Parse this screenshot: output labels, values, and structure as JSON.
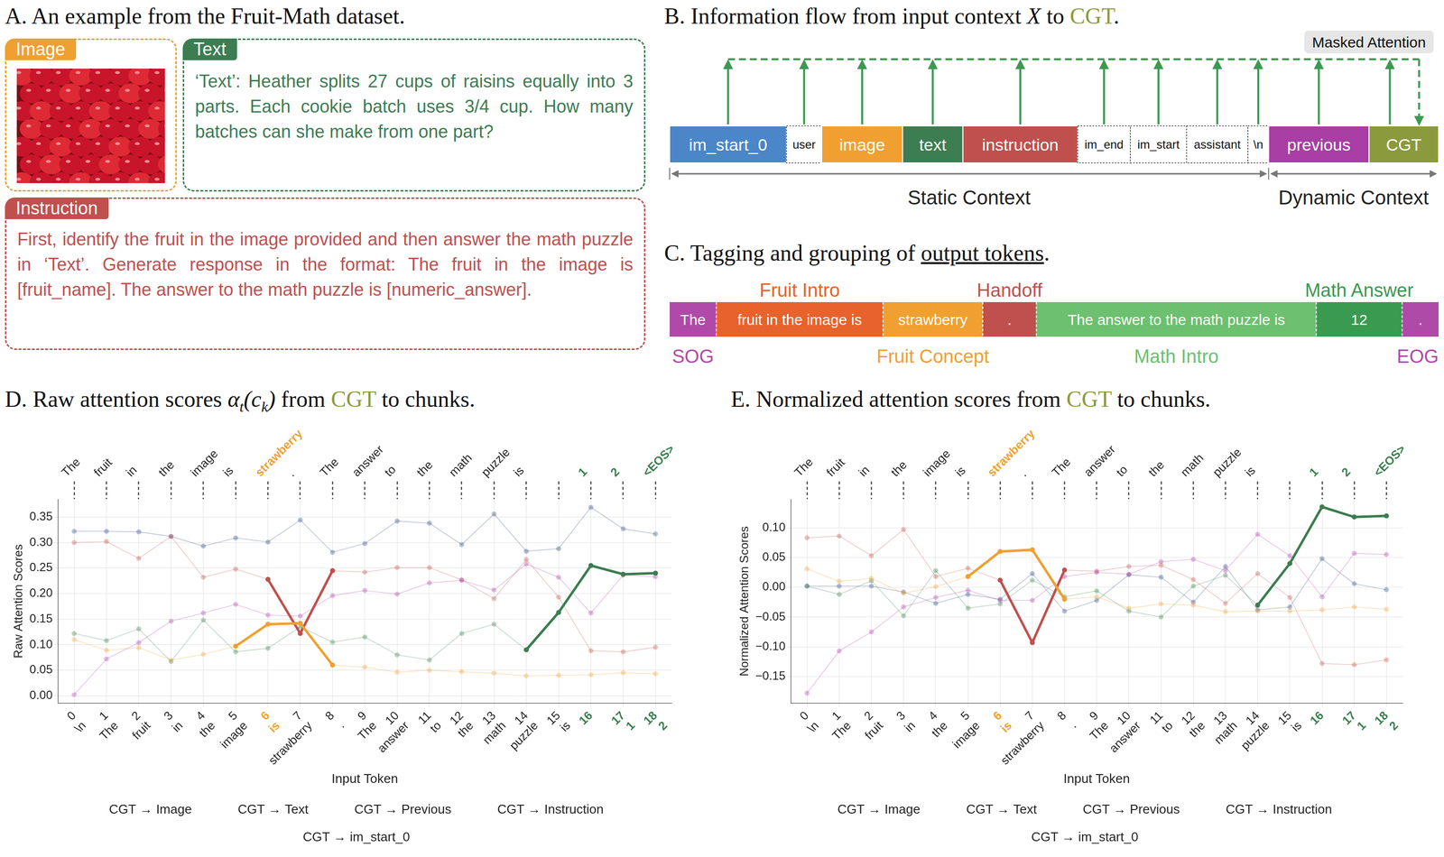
{
  "panel_a": {
    "title": "A. An example from the Fruit-Math dataset.",
    "image": {
      "label": "Image",
      "color": "#f0a030"
    },
    "text": {
      "label": "Text",
      "color": "#3d7d52",
      "content": "‘Text’: Heather splits 27 cups of raisins equally into 3 parts. Each cookie batch uses 3/4 cup. How many batches can she make from one part?"
    },
    "instruction": {
      "label": "Instruction",
      "color": "#c0504d",
      "content": "First, identify the fruit in the image provided and then answer the math puzzle in ‘Text’. Generate response in the format: The fruit in the image is [fruit_name]. The answer to the math puzzle is [numeric_answer]."
    }
  },
  "panel_b": {
    "title": [
      {
        "text": "B. Information flow from input context "
      },
      {
        "text": "X",
        "italic": true
      },
      {
        "text": " to "
      },
      {
        "text": "CGT",
        "color": "#8b9a3c"
      },
      {
        "text": "."
      }
    ],
    "tokens": [
      {
        "label": "im_start_0",
        "color": "#4a86c8"
      },
      {
        "label": "user",
        "color": "#ffffff"
      },
      {
        "label": "image",
        "color": "#f0a030"
      },
      {
        "label": "text",
        "color": "#3d7d52"
      },
      {
        "label": "instruction",
        "color": "#c0504d"
      },
      {
        "label": "im_end",
        "color": "#ffffff"
      },
      {
        "label": "im_start",
        "color": "#ffffff"
      },
      {
        "label": "assistant",
        "color": "#ffffff"
      },
      {
        "label": "\\n",
        "color": "#ffffff"
      },
      {
        "label": "previous",
        "color": "#a93ea5"
      },
      {
        "label": "CGT",
        "color": "#8b9a3c"
      }
    ],
    "attention_label": "Masked Attention",
    "contexts": [
      {
        "label": "Static Context",
        "first": 0,
        "last": 8
      },
      {
        "label": "Dynamic Context",
        "first": 9,
        "last": 10
      }
    ]
  },
  "panel_c": {
    "title": [
      {
        "text": "C. Tagging and grouping of "
      },
      {
        "text": "output tokens",
        "underline": true
      },
      {
        "text": "."
      }
    ],
    "segments": [
      {
        "text": "The",
        "tag": "SOG",
        "tag_side": "below",
        "color": "#b04aa8"
      },
      {
        "text": "fruit in the image is",
        "tag": "Fruit Intro",
        "tag_side": "above",
        "color": "#e8622c"
      },
      {
        "text": "strawberry",
        "tag": "Fruit Concept",
        "tag_side": "below",
        "color": "#f0a030"
      },
      {
        "text": ".",
        "tag": "Handoff",
        "tag_side": "above",
        "color": "#c0504d"
      },
      {
        "text": "The answer to the math puzzle is",
        "tag": "Math Intro",
        "tag_side": "below",
        "color": "#6cc070"
      },
      {
        "text": "12",
        "tag": "Math Answer",
        "tag_side": "above",
        "color": "#3a9a50"
      },
      {
        "text": ".",
        "tag": "EOG",
        "tag_side": "below",
        "color": "#b04aa8"
      }
    ]
  },
  "chart_data": [
    {
      "type": "line",
      "title": [
        {
          "text": "D. Raw attention scores "
        },
        {
          "text": "α",
          "italic": true
        },
        {
          "text": "t",
          "italic": true,
          "sub": true
        },
        {
          "text": "(",
          "italic": true
        },
        {
          "text": "c",
          "italic": true
        },
        {
          "text": "k",
          "italic": true,
          "sub": true
        },
        {
          "text": ")",
          "italic": true
        },
        {
          "text": " from "
        },
        {
          "text": "CGT",
          "color": "#8b9a3c"
        },
        {
          "text": " to chunks."
        }
      ],
      "x_label": "Input Token",
      "y_label": "Raw Attention Scores",
      "x": [
        0,
        1,
        2,
        3,
        4,
        5,
        6,
        7,
        8,
        9,
        10,
        11,
        12,
        13,
        14,
        15,
        16,
        17,
        18
      ],
      "input_tokens": [
        "\\n",
        "The",
        "fruit",
        "in",
        "the",
        "image",
        "is",
        "strawberry",
        ".",
        "The",
        "answer",
        "to",
        "the",
        "math",
        "puzzle",
        "is",
        null,
        "1",
        "2"
      ],
      "output_tokens": [
        "The",
        "fruit",
        "in",
        "the",
        "image",
        "is",
        "strawberry",
        ".",
        "The",
        "answer",
        "to",
        "the",
        "math",
        "puzzle",
        "is",
        null,
        "1",
        "2",
        "<EOS>"
      ],
      "input_token_colors": [
        null,
        null,
        null,
        null,
        null,
        null,
        "#f0a030",
        null,
        null,
        null,
        null,
        null,
        null,
        null,
        null,
        null,
        "#3b7d4f",
        "#3b7d4f",
        "#3b7d4f"
      ],
      "output_token_colors": [
        null,
        null,
        null,
        null,
        null,
        null,
        "#f0a030",
        null,
        null,
        null,
        null,
        null,
        null,
        null,
        null,
        null,
        "#3b7d4f",
        "#3b7d4f",
        "#3b7d4f"
      ],
      "xlim": [
        -0.5,
        18.5
      ],
      "xticks": [
        0,
        1,
        2,
        3,
        4,
        5,
        6,
        7,
        8,
        9,
        10,
        11,
        12,
        13,
        14,
        15,
        16,
        17,
        18
      ],
      "ylim": [
        -0.015,
        0.385
      ],
      "yticks": [
        {
          "value": 0,
          "label": "0.00"
        },
        {
          "value": 0.05,
          "label": "0.05"
        },
        {
          "value": 0.1,
          "label": "0.10"
        },
        {
          "value": 0.15,
          "label": "0.15"
        },
        {
          "value": 0.2,
          "label": "0.20"
        },
        {
          "value": 0.25,
          "label": "0.25"
        },
        {
          "value": 0.3,
          "label": "0.30"
        },
        {
          "value": 0.35,
          "label": "0.35"
        }
      ],
      "grid": true,
      "legend": "bottom",
      "marker": "circle",
      "series": [
        {
          "name": "CGT → Image",
          "color": "#f0a030",
          "highlight": [
            5,
            8
          ],
          "values": [
            0.11,
            0.089,
            0.094,
            0.07,
            0.081,
            0.097,
            0.14,
            0.142,
            0.06,
            0.056,
            0.046,
            0.05,
            0.047,
            0.044,
            0.039,
            0.04,
            0.041,
            0.045,
            0.043
          ]
        },
        {
          "name": "CGT → Text",
          "color": "#3b7d4f",
          "highlight": [
            14,
            18
          ],
          "values": [
            0.122,
            0.108,
            0.131,
            0.067,
            0.148,
            0.086,
            0.093,
            0.135,
            0.105,
            0.115,
            0.08,
            0.07,
            0.122,
            0.14,
            0.09,
            0.163,
            0.255,
            0.238,
            0.24
          ]
        },
        {
          "name": "CGT → Previous",
          "color": "#b03fa8",
          "values": [
            0.002,
            0.072,
            0.104,
            0.146,
            0.162,
            0.179,
            0.158,
            0.156,
            0.196,
            0.206,
            0.199,
            0.221,
            0.226,
            0.207,
            0.258,
            0.232,
            0.162,
            0.236,
            0.233
          ]
        },
        {
          "name": "CGT → Instruction",
          "color": "#c0504d",
          "highlight": [
            6,
            8
          ],
          "values": [
            0.3,
            0.302,
            0.269,
            0.312,
            0.232,
            0.248,
            0.228,
            0.122,
            0.245,
            0.242,
            0.251,
            0.251,
            0.227,
            0.19,
            0.267,
            0.193,
            0.088,
            0.086,
            0.095
          ]
        },
        {
          "name": "CGT → im_start_0",
          "color": "#2d4786",
          "values": [
            0.322,
            0.322,
            0.321,
            0.312,
            0.293,
            0.309,
            0.301,
            0.344,
            0.281,
            0.298,
            0.342,
            0.338,
            0.296,
            0.356,
            0.283,
            0.288,
            0.369,
            0.327,
            0.317
          ]
        }
      ]
    },
    {
      "type": "line",
      "title": [
        {
          "text": "E. Normalized attention scores from "
        },
        {
          "text": "CGT",
          "color": "#8b9a3c"
        },
        {
          "text": " to chunks."
        }
      ],
      "x_label": "Input Token",
      "y_label": "Normalized Attention Scores",
      "x": [
        0,
        1,
        2,
        3,
        4,
        5,
        6,
        7,
        8,
        9,
        10,
        11,
        12,
        13,
        14,
        15,
        16,
        17,
        18
      ],
      "input_tokens": [
        "\\n",
        "The",
        "fruit",
        "in",
        "the",
        "image",
        "is",
        "strawberry",
        ".",
        "The",
        "answer",
        "to",
        "the",
        "math",
        "puzzle",
        "is",
        null,
        "1",
        "2"
      ],
      "output_tokens": [
        "The",
        "fruit",
        "in",
        "the",
        "image",
        "is",
        "strawberry",
        ".",
        "The",
        "answer",
        "to",
        "the",
        "math",
        "puzzle",
        "is",
        null,
        "1",
        "2",
        "<EOS>"
      ],
      "input_token_colors": [
        null,
        null,
        null,
        null,
        null,
        null,
        "#f0a030",
        null,
        null,
        null,
        null,
        null,
        null,
        null,
        null,
        null,
        "#3b7d4f",
        "#3b7d4f",
        "#3b7d4f"
      ],
      "output_token_colors": [
        null,
        null,
        null,
        null,
        null,
        null,
        "#f0a030",
        null,
        null,
        null,
        null,
        null,
        null,
        null,
        null,
        null,
        "#3b7d4f",
        "#3b7d4f",
        "#3b7d4f"
      ],
      "xlim": [
        -0.5,
        18.5
      ],
      "xticks": [
        0,
        1,
        2,
        3,
        4,
        5,
        6,
        7,
        8,
        9,
        10,
        11,
        12,
        13,
        14,
        15,
        16,
        17,
        18
      ],
      "ylim": [
        -0.195,
        0.148
      ],
      "yticks": [
        {
          "value": -0.15,
          "label": "−0.15"
        },
        {
          "value": -0.1,
          "label": "−0.10"
        },
        {
          "value": -0.05,
          "label": "−0.05"
        },
        {
          "value": 0,
          "label": "0.00"
        },
        {
          "value": 0.05,
          "label": "0.05"
        },
        {
          "value": 0.1,
          "label": "0.10"
        }
      ],
      "grid": true,
      "legend": "bottom",
      "marker": "circle",
      "series": [
        {
          "name": "CGT → Image",
          "color": "#f0a030",
          "highlight": [
            5,
            8
          ],
          "values": [
            0.031,
            0.01,
            0.015,
            -0.01,
            0.001,
            0.018,
            0.06,
            0.063,
            -0.02,
            -0.016,
            -0.035,
            -0.028,
            -0.03,
            -0.041,
            -0.04,
            -0.04,
            -0.038,
            -0.033,
            -0.037
          ]
        },
        {
          "name": "CGT → Text",
          "color": "#3b7d4f",
          "highlight": [
            14,
            18
          ],
          "values": [
            0.002,
            -0.012,
            0.011,
            -0.048,
            0.028,
            -0.035,
            -0.028,
            0.012,
            -0.016,
            -0.006,
            -0.04,
            -0.05,
            0.002,
            0.02,
            -0.03,
            0.04,
            0.135,
            0.118,
            0.12
          ]
        },
        {
          "name": "CGT → Previous",
          "color": "#b03fa8",
          "values": [
            -0.178,
            -0.107,
            -0.075,
            -0.033,
            -0.017,
            -0.005,
            -0.022,
            -0.022,
            0.018,
            0.025,
            0.022,
            0.043,
            0.047,
            0.028,
            0.089,
            0.053,
            -0.016,
            0.057,
            0.055
          ]
        },
        {
          "name": "CGT → Instruction",
          "color": "#c0504d",
          "highlight": [
            6,
            8
          ],
          "values": [
            0.083,
            0.086,
            0.053,
            0.097,
            0.018,
            0.032,
            0.012,
            -0.093,
            0.029,
            0.027,
            0.035,
            0.037,
            0.013,
            -0.027,
            0.023,
            -0.017,
            -0.128,
            -0.13,
            -0.122
          ]
        },
        {
          "name": "CGT → im_start_0",
          "color": "#2d4786",
          "values": [
            0.002,
            0.002,
            0.002,
            -0.008,
            -0.027,
            -0.012,
            -0.02,
            0.023,
            -0.04,
            -0.022,
            0.021,
            0.017,
            -0.025,
            0.035,
            -0.038,
            -0.033,
            0.048,
            0.006,
            -0.004
          ]
        }
      ]
    }
  ]
}
